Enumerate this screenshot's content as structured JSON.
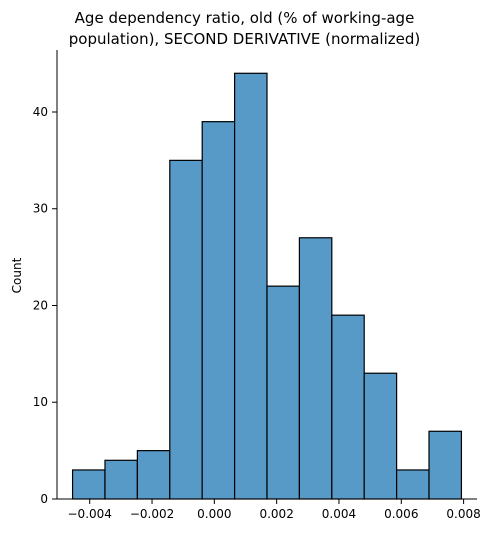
{
  "chart_data": {
    "type": "bar",
    "subtype": "histogram",
    "title_lines": [
      "Age dependency ratio, old (% of working-age",
      "population), SECOND DERIVATIVE (normalized)"
    ],
    "xlabel": "",
    "ylabel": "Count",
    "bins": [
      {
        "x0": -0.00455,
        "x1": -0.00351,
        "count": 3
      },
      {
        "x0": -0.00351,
        "x1": -0.00247,
        "count": 4
      },
      {
        "x0": -0.00247,
        "x1": -0.00143,
        "count": 5
      },
      {
        "x0": -0.00143,
        "x1": -0.00039,
        "count": 35
      },
      {
        "x0": -0.00039,
        "x1": 0.00065,
        "count": 39
      },
      {
        "x0": 0.00065,
        "x1": 0.00169,
        "count": 44
      },
      {
        "x0": 0.00169,
        "x1": 0.00273,
        "count": 22
      },
      {
        "x0": 0.00273,
        "x1": 0.00377,
        "count": 27
      },
      {
        "x0": 0.00377,
        "x1": 0.00481,
        "count": 19
      },
      {
        "x0": 0.00481,
        "x1": 0.00585,
        "count": 13
      },
      {
        "x0": 0.00585,
        "x1": 0.00689,
        "count": 3
      },
      {
        "x0": 0.00689,
        "x1": 0.00793,
        "count": 7
      }
    ],
    "xlim": [
      -0.00505,
      0.00843
    ],
    "ylim": [
      0,
      46.2
    ],
    "xticks": [
      -0.004,
      -0.002,
      0.0,
      0.002,
      0.004,
      0.006,
      0.008
    ],
    "xtick_labels": [
      "−0.004",
      "−0.002",
      "0.000",
      "0.002",
      "0.004",
      "0.006",
      "0.008"
    ],
    "yticks": [
      0,
      10,
      20,
      30,
      40
    ],
    "ytick_labels": [
      "0",
      "10",
      "20",
      "30",
      "40"
    ],
    "grid": false,
    "legend": "none",
    "colors": {
      "bar_fill": "#5799c7",
      "bar_edge": "#000000",
      "axis": "#000000"
    }
  }
}
